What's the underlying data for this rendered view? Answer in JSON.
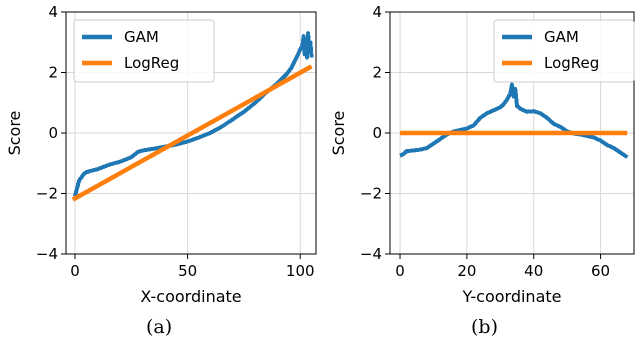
{
  "chart_data": [
    {
      "type": "line",
      "xlabel": "X-coordinate",
      "ylabel": "Score",
      "xlim": [
        -4,
        107
      ],
      "ylim": [
        -4,
        4
      ],
      "xticks": [
        0,
        50,
        100
      ],
      "yticks": [
        -4,
        -2,
        0,
        2,
        4
      ],
      "grid": true,
      "legend": "top-left",
      "caption": "(a)",
      "series": [
        {
          "name": "GAM",
          "color": "#1f77b4",
          "x": [
            0,
            0.5,
            1,
            1.5,
            2,
            3,
            4,
            5,
            7,
            10,
            15,
            20,
            25,
            28,
            30,
            35,
            40,
            45,
            50,
            55,
            60,
            65,
            70,
            75,
            80,
            85,
            90,
            92,
            94,
            96,
            97,
            98,
            99,
            100,
            101,
            101.5,
            102,
            102.5,
            103,
            103.5,
            104,
            104.5,
            105
          ],
          "values": [
            -2.1,
            -1.95,
            -1.8,
            -1.65,
            -1.55,
            -1.45,
            -1.35,
            -1.3,
            -1.25,
            -1.2,
            -1.05,
            -0.95,
            -0.8,
            -0.62,
            -0.58,
            -0.52,
            -0.45,
            -0.38,
            -0.28,
            -0.15,
            0.0,
            0.2,
            0.45,
            0.7,
            1.0,
            1.35,
            1.65,
            1.8,
            1.95,
            2.15,
            2.3,
            2.45,
            2.6,
            2.75,
            2.9,
            3.2,
            2.6,
            3.1,
            2.5,
            3.3,
            2.7,
            3.0,
            2.5
          ]
        },
        {
          "name": "LogReg",
          "color": "#ff7f0e",
          "x": [
            -1,
            105
          ],
          "values": [
            -2.2,
            2.2
          ]
        }
      ]
    },
    {
      "type": "line",
      "xlabel": "Y-coordinate",
      "ylabel": "Score",
      "xlim": [
        -3,
        70
      ],
      "ylim": [
        -4,
        4
      ],
      "xticks": [
        0,
        20,
        40,
        60
      ],
      "yticks": [
        -4,
        -2,
        0,
        2,
        4
      ],
      "grid": true,
      "legend": "top-right",
      "caption": "(b)",
      "series": [
        {
          "name": "GAM",
          "color": "#1f77b4",
          "x": [
            0,
            1,
            2,
            4,
            6,
            8,
            10,
            12,
            14,
            16,
            18,
            20,
            22,
            24,
            26,
            28,
            30,
            31,
            32,
            33,
            33.5,
            34,
            34.5,
            35,
            36,
            37,
            38,
            40,
            42,
            44,
            46,
            48,
            50,
            52,
            54,
            56,
            58,
            60,
            62,
            64,
            66,
            68
          ],
          "values": [
            -0.75,
            -0.7,
            -0.6,
            -0.58,
            -0.55,
            -0.5,
            -0.35,
            -0.2,
            -0.05,
            0.05,
            0.1,
            0.15,
            0.25,
            0.5,
            0.65,
            0.75,
            0.85,
            0.95,
            1.1,
            1.3,
            1.6,
            1.2,
            1.45,
            0.9,
            0.8,
            0.75,
            0.7,
            0.72,
            0.65,
            0.5,
            0.3,
            0.2,
            0.05,
            -0.02,
            -0.05,
            -0.1,
            -0.15,
            -0.25,
            -0.4,
            -0.5,
            -0.65,
            -0.8
          ]
        },
        {
          "name": "LogReg",
          "color": "#ff7f0e",
          "x": [
            0,
            68
          ],
          "values": [
            0.0,
            0.0
          ]
        }
      ]
    }
  ]
}
